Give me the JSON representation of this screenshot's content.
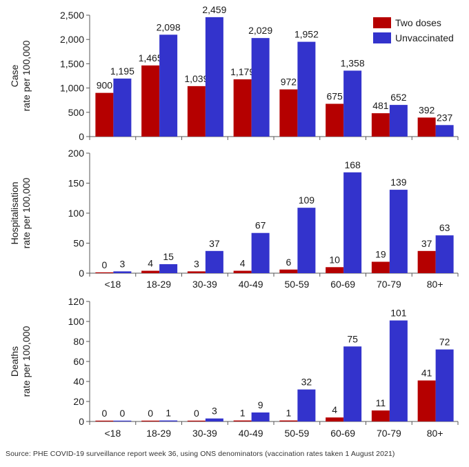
{
  "colors": {
    "two_doses": "#B50000",
    "unvaccinated": "#3333CC",
    "axis": "#555555"
  },
  "source": "Source: PHE COVID-19  surveillance report week 36, using ONS denominators (vaccination rates taken 1 August 2021)",
  "chart_data": [
    {
      "type": "bar",
      "panel": "case",
      "ylabel_lines": [
        "Case",
        "rate per 100,000"
      ],
      "categories": [
        "<18",
        "18-29",
        "30-39",
        "40-49",
        "50-59",
        "60-69",
        "70-79",
        "80+"
      ],
      "show_category_labels": false,
      "ylim": [
        0,
        2500
      ],
      "yticks": [
        0,
        500,
        1000,
        1500,
        2000,
        2500
      ],
      "ytick_labels": [
        "0",
        "500",
        "1,000",
        "1,500",
        "2,000",
        "2,500"
      ],
      "legend": {
        "position": "top-right"
      },
      "series": [
        {
          "name": "Two doses",
          "color_key": "two_doses",
          "values": [
            900,
            1465,
            1039,
            1179,
            972,
            675,
            481,
            392
          ],
          "labels": [
            "900",
            "1,465",
            "1,039",
            "1,179",
            "972",
            "675",
            "481",
            "392"
          ]
        },
        {
          "name": "Unvaccinated",
          "color_key": "unvaccinated",
          "values": [
            1195,
            2098,
            2459,
            2029,
            1952,
            1358,
            652,
            237
          ],
          "labels": [
            "1,195",
            "2,098",
            "2,459",
            "2,029",
            "1,952",
            "1,358",
            "652",
            "237"
          ]
        }
      ]
    },
    {
      "type": "bar",
      "panel": "hospitalisation",
      "ylabel_lines": [
        "Hospitalisation",
        "rate per 100,000"
      ],
      "categories": [
        "<18",
        "18-29",
        "30-39",
        "40-49",
        "50-59",
        "60-69",
        "70-79",
        "80+"
      ],
      "show_category_labels": true,
      "ylim": [
        0,
        200
      ],
      "yticks": [
        0,
        50,
        100,
        150,
        200
      ],
      "ytick_labels": [
        "0",
        "50",
        "100",
        "150",
        "200"
      ],
      "series": [
        {
          "name": "Two doses",
          "color_key": "two_doses",
          "values": [
            0,
            4,
            3,
            4,
            6,
            10,
            19,
            37
          ],
          "labels": [
            "0",
            "4",
            "3",
            "4",
            "6",
            "10",
            "19",
            "37"
          ]
        },
        {
          "name": "Unvaccinated",
          "color_key": "unvaccinated",
          "values": [
            3,
            15,
            37,
            67,
            109,
            168,
            139,
            63
          ],
          "labels": [
            "3",
            "15",
            "37",
            "67",
            "109",
            "168",
            "139",
            "63"
          ]
        }
      ]
    },
    {
      "type": "bar",
      "panel": "deaths",
      "ylabel_lines": [
        "Deaths",
        "rate per 100,000"
      ],
      "categories": [
        "<18",
        "18-29",
        "30-39",
        "40-49",
        "50-59",
        "60-69",
        "70-79",
        "80+"
      ],
      "show_category_labels": true,
      "ylim": [
        0,
        120
      ],
      "yticks": [
        0,
        20,
        40,
        60,
        80,
        100,
        120
      ],
      "ytick_labels": [
        "0",
        "20",
        "40",
        "60",
        "80",
        "100",
        "120"
      ],
      "series": [
        {
          "name": "Two doses",
          "color_key": "two_doses",
          "values": [
            0,
            0,
            0,
            1,
            1,
            4,
            11,
            41
          ],
          "labels": [
            "0",
            "0",
            "0",
            "1",
            "1",
            "4",
            "11",
            "41"
          ]
        },
        {
          "name": "Unvaccinated",
          "color_key": "unvaccinated",
          "values": [
            0,
            1,
            3,
            9,
            32,
            75,
            101,
            72
          ],
          "labels": [
            "0",
            "1",
            "3",
            "9",
            "32",
            "75",
            "101",
            "72"
          ]
        }
      ]
    }
  ]
}
